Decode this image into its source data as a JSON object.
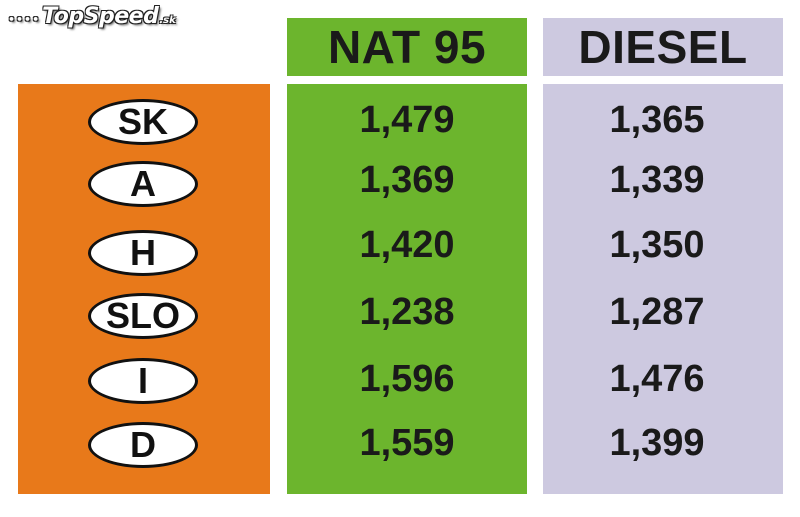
{
  "logo": {
    "dots": "••••",
    "name": "TopSpeed",
    "tld": ".sk"
  },
  "colors": {
    "country_panel": "#e8791a",
    "nat95": "#6cb52d",
    "diesel": "#cdc9e0"
  },
  "chart_data": {
    "type": "table",
    "columns": [
      "NAT 95",
      "DIESEL"
    ],
    "rows": [
      {
        "country": "SK",
        "nat95": "1,479",
        "diesel": "1,365"
      },
      {
        "country": "A",
        "nat95": "1,369",
        "diesel": "1,339"
      },
      {
        "country": "H",
        "nat95": "1,420",
        "diesel": "1,350"
      },
      {
        "country": "SLO",
        "nat95": "1,238",
        "diesel": "1,287"
      },
      {
        "country": "I",
        "nat95": "1,596",
        "diesel": "1,476"
      },
      {
        "country": "D",
        "nat95": "1,559",
        "diesel": "1,399"
      }
    ]
  }
}
